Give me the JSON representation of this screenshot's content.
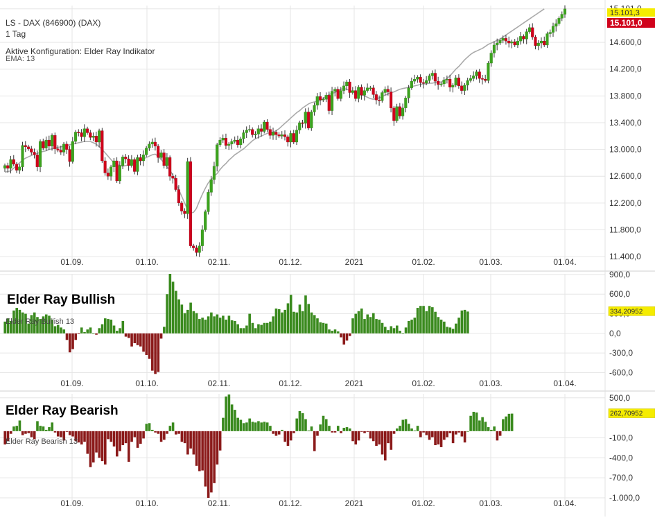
{
  "header": {
    "instrument": "LS - DAX (846900) (DAX)",
    "interval": "1 Tag",
    "config": "Aktive Konfiguration: Elder Ray Indikator",
    "ema": "EMA: 13"
  },
  "x_ticks": [
    "01.09.",
    "01.10.",
    "02.11.",
    "01.12.",
    "2021",
    "01.02.",
    "01.03.",
    "01.04."
  ],
  "colors": {
    "up": "#3ca31e",
    "down": "#d0021b",
    "bull": "#3a8a1e",
    "bear": "#8b1a1a",
    "ema": "#aaaaaa",
    "grid": "#e6e6e6"
  },
  "chart_data": [
    {
      "type": "candlestick",
      "name": "price",
      "y_ticks": [
        "11.400,0",
        "11.800,0",
        "12.200,0",
        "12.600,0",
        "13.000,0",
        "13.400,0",
        "13.800,0",
        "14.200,0",
        "14.600,0",
        "15.101,0"
      ],
      "ylim": [
        11380,
        15150
      ],
      "last_high": "15.101,3",
      "last_close": "15.101,0",
      "closes": [
        12760,
        12720,
        12850,
        12780,
        12690,
        12740,
        13060,
        13040,
        13010,
        12960,
        12920,
        12740,
        13120,
        13020,
        13140,
        13050,
        13210,
        13010,
        12990,
        12960,
        13080,
        13000,
        12820,
        13120,
        13260,
        13250,
        13190,
        13310,
        13250,
        13180,
        13200,
        13110,
        13280,
        12830,
        12650,
        12600,
        12740,
        12830,
        12530,
        12760,
        12890,
        12860,
        12760,
        12850,
        12670,
        12880,
        12830,
        12920,
        13020,
        13080,
        13110,
        13050,
        12880,
        12950,
        12760,
        12880,
        12600,
        12570,
        12400,
        12200,
        12080,
        12040,
        12820,
        11560,
        11530,
        11460,
        11560,
        11800,
        12070,
        12360,
        12550,
        12750,
        13070,
        13140,
        13170,
        13060,
        13080,
        13120,
        13140,
        13070,
        13160,
        13250,
        13290,
        13300,
        13220,
        13230,
        13310,
        13270,
        13410,
        13300,
        13210,
        13260,
        13220,
        13200,
        13220,
        13190,
        13110,
        13240,
        13110,
        13290,
        13400,
        13390,
        13560,
        13320,
        13560,
        13660,
        13790,
        13740,
        13750,
        13810,
        13580,
        13870,
        13900,
        13760,
        13880,
        13950,
        14010,
        13850,
        13880,
        13760,
        13930,
        13810,
        13880,
        13920,
        13920,
        13820,
        13740,
        13730,
        13850,
        13900,
        13860,
        13620,
        13430,
        13640,
        13500,
        13620,
        13770,
        13920,
        14020,
        14050,
        14080,
        14000,
        13990,
        14030,
        14100,
        14140,
        14020,
        13970,
        13980,
        14040,
        14050,
        13930,
        13960,
        14070,
        13950,
        13880,
        13960,
        14030,
        14060,
        14100,
        14160,
        14060,
        14050,
        14030,
        14290,
        14440,
        14560,
        14590,
        14630,
        14660,
        14620,
        14590,
        14610,
        14560,
        14620,
        14690,
        14650,
        14760,
        14820,
        14680,
        14550,
        14590,
        14620,
        14560,
        14730,
        14750,
        14840,
        14880,
        14960,
        15020,
        15100
      ],
      "ema_curve": [
        12660,
        12670,
        12680,
        12720,
        12760,
        12800,
        12840,
        12870,
        12890,
        12910,
        12930,
        12940,
        12960,
        12970,
        12980,
        13000,
        13010,
        13020,
        13030,
        13040,
        13050,
        13060,
        13070,
        13080,
        13090,
        13100,
        13110,
        13120,
        13120,
        13120,
        13100,
        13080,
        13040,
        13000,
        12950,
        12900,
        12850,
        12800,
        12780,
        12760,
        12750,
        12760,
        12770,
        12780,
        12800,
        12820,
        12840,
        12860,
        12880,
        12900,
        12920,
        12930,
        12900,
        12850,
        12800,
        12740,
        12690,
        12620,
        12500,
        12400,
        12300,
        12200,
        12100,
        12050,
        12060,
        12120,
        12230,
        12330,
        12420,
        12500,
        12550,
        12600,
        12640,
        12700,
        12750,
        12790,
        12840,
        12880,
        12920,
        12950,
        12980,
        13010,
        13050,
        13090,
        13130,
        13160,
        13180,
        13200,
        13220,
        13240,
        13250,
        13260,
        13280,
        13310,
        13350,
        13390,
        13430,
        13470,
        13510,
        13550,
        13580,
        13620,
        13650,
        13680,
        13700,
        13710,
        13720,
        13730,
        13760,
        13790,
        13820,
        13840,
        13850,
        13880,
        13900,
        13910,
        13900,
        13880,
        13860,
        13850,
        13840,
        13820,
        13800,
        13780,
        13760,
        13750,
        13760,
        13770,
        13790,
        13810,
        13830,
        13850,
        13860,
        13880,
        13900,
        13910,
        13920,
        13930,
        13940,
        13950,
        13960,
        13970,
        13980,
        13980,
        13990,
        13990,
        14000,
        14000,
        14010,
        14030,
        14060,
        14100,
        14150,
        14200,
        14240,
        14290,
        14340,
        14380,
        14420,
        14450,
        14470,
        14490,
        14510,
        14540,
        14570,
        14590,
        14610,
        14630,
        14650,
        14680,
        14710,
        14740,
        14770,
        14800,
        14830,
        14860,
        14890,
        14920,
        14950,
        14980,
        15010,
        15040,
        15070,
        15100
      ]
    },
    {
      "type": "bar",
      "name": "Elder Ray Bullish 13",
      "title": "Elder Ray Bullish",
      "y_ticks": [
        "900,0",
        "600,0",
        "300,0",
        "0,0",
        "-300,0",
        "-600,0"
      ],
      "ylim": [
        -680,
        910
      ],
      "last_value": "334,20952",
      "values": [
        180,
        230,
        190,
        350,
        390,
        360,
        320,
        300,
        150,
        280,
        320,
        250,
        220,
        260,
        290,
        270,
        210,
        110,
        130,
        90,
        60,
        -100,
        -290,
        -240,
        -100,
        -10,
        90,
        20,
        60,
        90,
        0,
        -20,
        80,
        140,
        230,
        220,
        210,
        120,
        40,
        80,
        190,
        -50,
        -70,
        -200,
        -150,
        -180,
        -200,
        -280,
        -330,
        -390,
        -570,
        -620,
        -590,
        -80,
        100,
        600,
        910,
        790,
        650,
        520,
        440,
        310,
        360,
        470,
        340,
        310,
        220,
        240,
        210,
        260,
        320,
        260,
        290,
        240,
        270,
        210,
        270,
        200,
        190,
        140,
        80,
        80,
        120,
        300,
        160,
        80,
        140,
        130,
        160,
        160,
        180,
        260,
        380,
        370,
        320,
        360,
        460,
        590,
        330,
        320,
        440,
        340,
        580,
        450,
        320,
        280,
        230,
        170,
        160,
        150,
        60,
        40,
        60,
        30,
        -60,
        -170,
        -110,
        -40,
        230,
        300,
        340,
        380,
        220,
        290,
        250,
        310,
        220,
        210,
        160,
        100,
        50,
        110,
        80,
        120,
        40,
        0,
        90,
        190,
        210,
        240,
        390,
        420,
        420,
        340,
        420,
        400,
        330,
        250,
        210,
        180,
        100,
        90,
        70,
        150,
        240,
        350,
        360,
        334
      ]
    },
    {
      "type": "bar",
      "name": "Elder Ray Bearish 13",
      "title": "Elder Ray Bearish",
      "y_ticks": [
        "500,0",
        "-100,0",
        "-400,0",
        "-700,0",
        "-1.000,0"
      ],
      "ylim": [
        -1000,
        560
      ],
      "last_value": "262,70952",
      "values": [
        -200,
        -150,
        -40,
        70,
        80,
        160,
        -60,
        -40,
        -30,
        -90,
        -120,
        150,
        80,
        70,
        20,
        60,
        130,
        -20,
        -80,
        -90,
        -140,
        -10,
        -60,
        -80,
        -150,
        -170,
        -200,
        -160,
        -340,
        -540,
        -470,
        -320,
        -400,
        -450,
        -500,
        -120,
        -160,
        -230,
        -380,
        -300,
        -210,
        -180,
        -460,
        -160,
        -90,
        -250,
        -190,
        -110,
        110,
        120,
        20,
        -20,
        -40,
        -160,
        -130,
        -40,
        80,
        130,
        -50,
        -40,
        -160,
        -180,
        -350,
        -260,
        -350,
        -520,
        -600,
        -590,
        -830,
        -1000,
        -920,
        -780,
        -500,
        -290,
        200,
        520,
        550,
        400,
        320,
        200,
        170,
        120,
        130,
        190,
        140,
        130,
        150,
        130,
        140,
        130,
        80,
        -40,
        -70,
        -50,
        20,
        -160,
        -220,
        -140,
        -30,
        190,
        300,
        270,
        180,
        10,
        70,
        -300,
        -70,
        100,
        230,
        180,
        80,
        -20,
        -20,
        80,
        -30,
        50,
        60,
        40,
        -150,
        -200,
        -140,
        -10,
        -30,
        -10,
        -110,
        -150,
        -220,
        -200,
        -350,
        -440,
        -180,
        -280,
        -40,
        40,
        80,
        170,
        180,
        110,
        40,
        10,
        80,
        -90,
        -20,
        -60,
        -130,
        -90,
        -210,
        -200,
        -240,
        -130,
        -90,
        -30,
        -180,
        -50,
        -20,
        -80,
        -170,
        0,
        230,
        290,
        280,
        160,
        210,
        140,
        60,
        20,
        70,
        -140,
        -70,
        180,
        220,
        260,
        263
      ]
    }
  ],
  "elder_bull_label": "Elder Ray Bullish 13",
  "elder_bear_label": "Elder Ray Bearish 13"
}
